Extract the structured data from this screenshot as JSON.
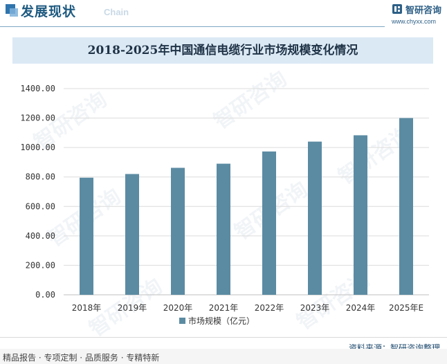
{
  "header": {
    "title": "发展现状",
    "subtitle": "Chain",
    "brand_name": "智研咨询",
    "brand_url": "www.chyxx.com"
  },
  "watermark": {
    "text": "智研咨询"
  },
  "chart_data": {
    "type": "bar",
    "title": "2018-2025年中国通信电缆行业市场规模变化情况",
    "categories": [
      "2018年",
      "2019年",
      "2020年",
      "2021年",
      "2022年",
      "2023年",
      "2024年",
      "2025年E"
    ],
    "series": [
      {
        "name": "市场规模（亿元）",
        "values": [
          795,
          820,
          862,
          890,
          973,
          1040,
          1083,
          1200
        ]
      }
    ],
    "ylim": [
      0,
      1400
    ],
    "yticks": [
      0,
      200,
      400,
      600,
      800,
      1000,
      1200,
      1400
    ],
    "ytick_labels": [
      "0.00",
      "200.00",
      "400.00",
      "600.00",
      "800.00",
      "1000.00",
      "1200.00",
      "1400.00"
    ],
    "grid": true,
    "legend_position": "bottom",
    "color": "#5b8ba3"
  },
  "footer": {
    "left": "精品报告 · 专项定制 · 品质服务 · 专精特新",
    "source": "资料来源：智研咨询整理"
  }
}
